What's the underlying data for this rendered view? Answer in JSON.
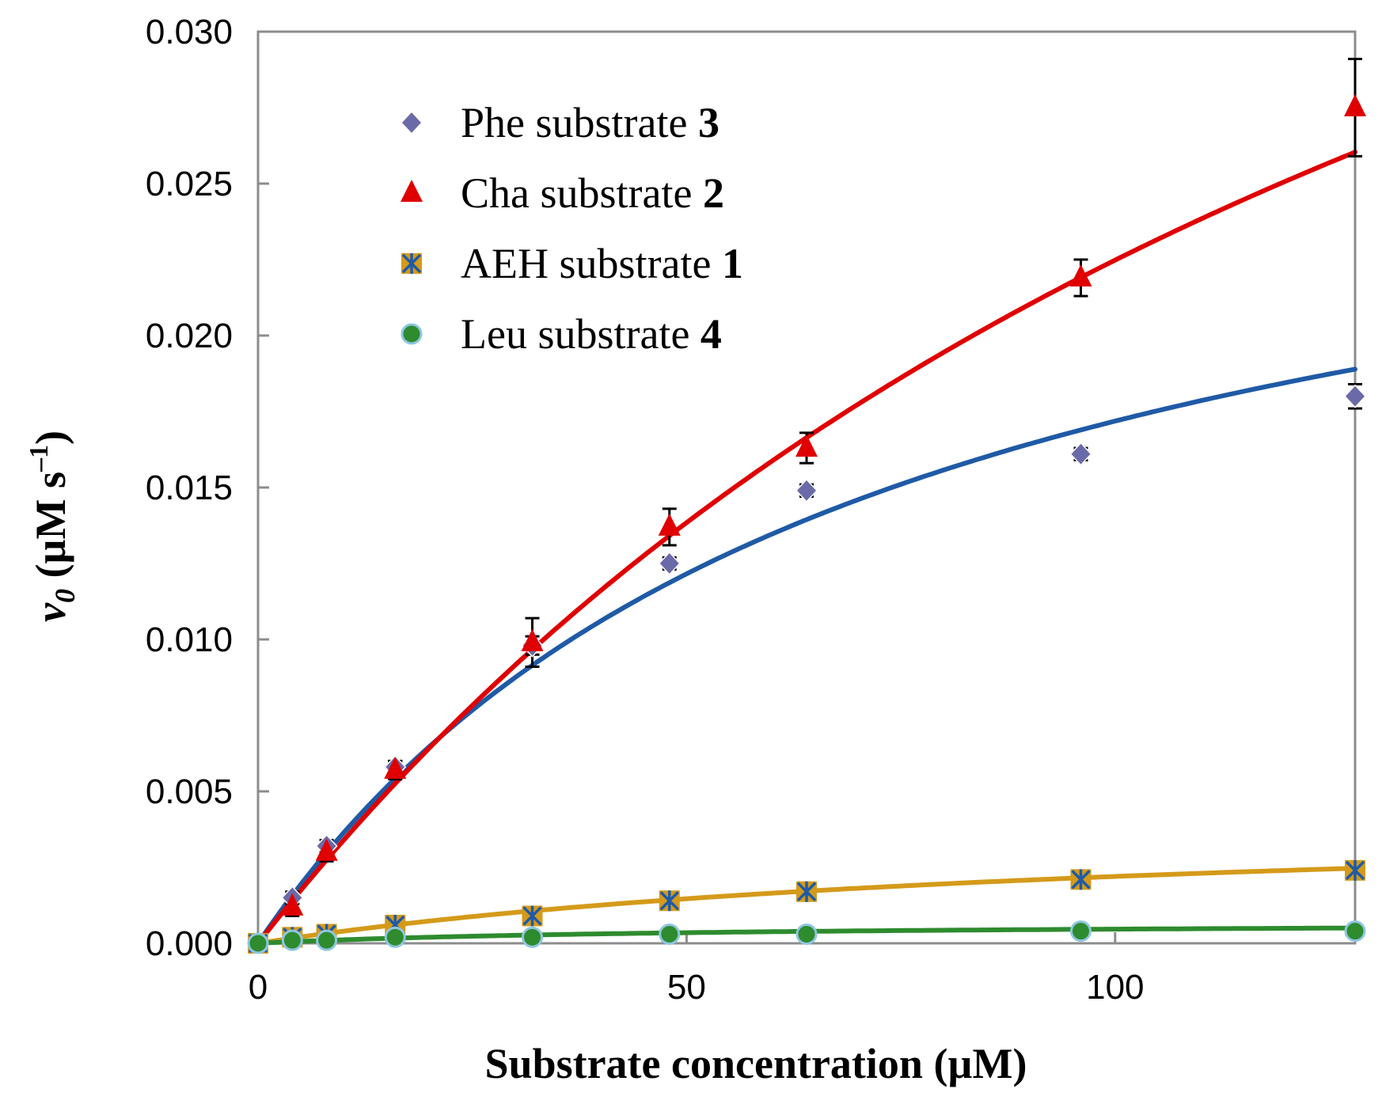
{
  "chart_data": {
    "type": "scatter",
    "xlabel": "Substrate concentration (µM)",
    "ylabel_parts": {
      "v": "v",
      "sub": "0",
      "unit": " (µM s",
      "exp": "–1",
      "close": ")"
    },
    "xlim": [
      0,
      128
    ],
    "ylim": [
      0,
      0.03
    ],
    "x_ticks": [
      0,
      50,
      100
    ],
    "x_tick_labels": [
      "0",
      "50",
      "100"
    ],
    "y_ticks": [
      0,
      0.005,
      0.01,
      0.015,
      0.02,
      0.025,
      0.03
    ],
    "y_tick_labels": [
      "0.000",
      "0.005",
      "0.010",
      "0.015",
      "0.020",
      "0.025",
      "0.030"
    ],
    "grid": false,
    "legend_placement": "top-left",
    "series": [
      {
        "name": "Phe substrate",
        "name_number": "3",
        "marker": "diamond",
        "marker_color": "#6a6aa8",
        "fit_color": "#1f5aa6",
        "fit_vmax": 0.0293,
        "fit_km": 70.5,
        "x": [
          4,
          8,
          16,
          32,
          48,
          64,
          96,
          128
        ],
        "y": [
          0.0015,
          0.0032,
          0.0058,
          0.0098,
          0.0125,
          0.0149,
          0.0161,
          0.018
        ],
        "err": [
          0.0002,
          0.0002,
          0.0002,
          0.0003,
          0.0002,
          0.0002,
          0.0002,
          0.0004
        ]
      },
      {
        "name": "Cha substrate",
        "name_number": "2",
        "marker": "triangle",
        "marker_color": "#e00000",
        "fit_color": "#e00000",
        "fit_vmax": 0.0598,
        "fit_km": 166,
        "x": [
          4,
          8,
          16,
          32,
          48,
          64,
          96,
          128
        ],
        "y": [
          0.0012,
          0.003,
          0.0057,
          0.0099,
          0.0137,
          0.0163,
          0.0219,
          0.0275
        ],
        "err": [
          0.0003,
          0.0003,
          0.0003,
          0.0008,
          0.0006,
          0.0005,
          0.0006,
          0.0016
        ]
      },
      {
        "name": "AEH substrate",
        "name_number": "1",
        "marker": "square-star",
        "marker_color": "#d49a1a",
        "fit_color": "#d49a1a",
        "fit_vmax": 0.0044,
        "fit_km": 100,
        "x": [
          0,
          4,
          8,
          16,
          32,
          48,
          64,
          96,
          128
        ],
        "y": [
          0.0,
          0.0002,
          0.0003,
          0.0006,
          0.0009,
          0.0014,
          0.0017,
          0.0021,
          0.0024
        ],
        "err": [
          0,
          0,
          0,
          0,
          0,
          0,
          0,
          0,
          0
        ]
      },
      {
        "name": "Leu substrate",
        "name_number": "4",
        "marker": "circle",
        "marker_color": "#2e8b2e",
        "fit_color": "#2e8b2e",
        "fit_vmax": 0.0007,
        "fit_km": 50,
        "x": [
          0,
          4,
          8,
          16,
          32,
          48,
          64,
          96,
          128
        ],
        "y": [
          0.0,
          0.0001,
          0.0001,
          0.0002,
          0.0002,
          0.0003,
          0.0003,
          0.0004,
          0.0004
        ],
        "err": [
          0,
          0,
          0,
          0,
          0,
          0,
          0,
          0,
          0
        ]
      }
    ]
  }
}
